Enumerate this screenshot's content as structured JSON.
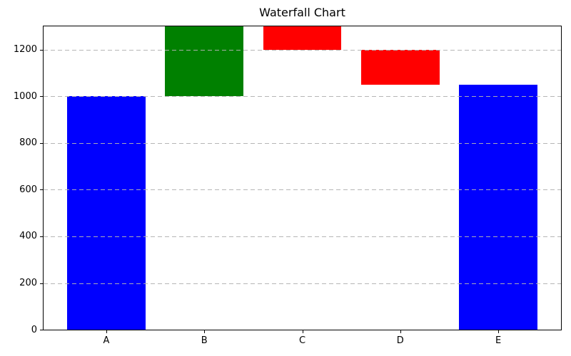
{
  "chart_data": {
    "type": "bar",
    "subtype": "waterfall",
    "title": "Waterfall Chart",
    "xlabel": "",
    "ylabel": "",
    "categories": [
      "A",
      "B",
      "C",
      "D",
      "E"
    ],
    "series": [
      {
        "name": "waterfall-segments",
        "segments": [
          {
            "category": "A",
            "from": 0,
            "to": 1000,
            "value": 1000,
            "kind": "start",
            "color": "#0000ff"
          },
          {
            "category": "B",
            "from": 1000,
            "to": 1300,
            "value": 300,
            "kind": "increase",
            "color": "#008000"
          },
          {
            "category": "C",
            "from": 1300,
            "to": 1200,
            "value": -100,
            "kind": "decrease",
            "color": "#ff0000"
          },
          {
            "category": "D",
            "from": 1200,
            "to": 1050,
            "value": -150,
            "kind": "decrease",
            "color": "#ff0000"
          },
          {
            "category": "E",
            "from": 0,
            "to": 1050,
            "value": 1050,
            "kind": "total",
            "color": "#0000ff"
          }
        ]
      }
    ],
    "ylim": [
      0,
      1300
    ],
    "xlim": [
      -0.64,
      4.64
    ],
    "yticks": [
      0,
      200,
      400,
      600,
      800,
      1000,
      1200
    ],
    "bar_width_fraction": 0.8,
    "grid": {
      "axis": "y",
      "style": "dashed",
      "color": "#b0b0b0",
      "drawn_above_bars": true
    },
    "legend": "none",
    "colors": {
      "start_total": "#0000ff",
      "increase": "#008000",
      "decrease": "#ff0000"
    }
  }
}
